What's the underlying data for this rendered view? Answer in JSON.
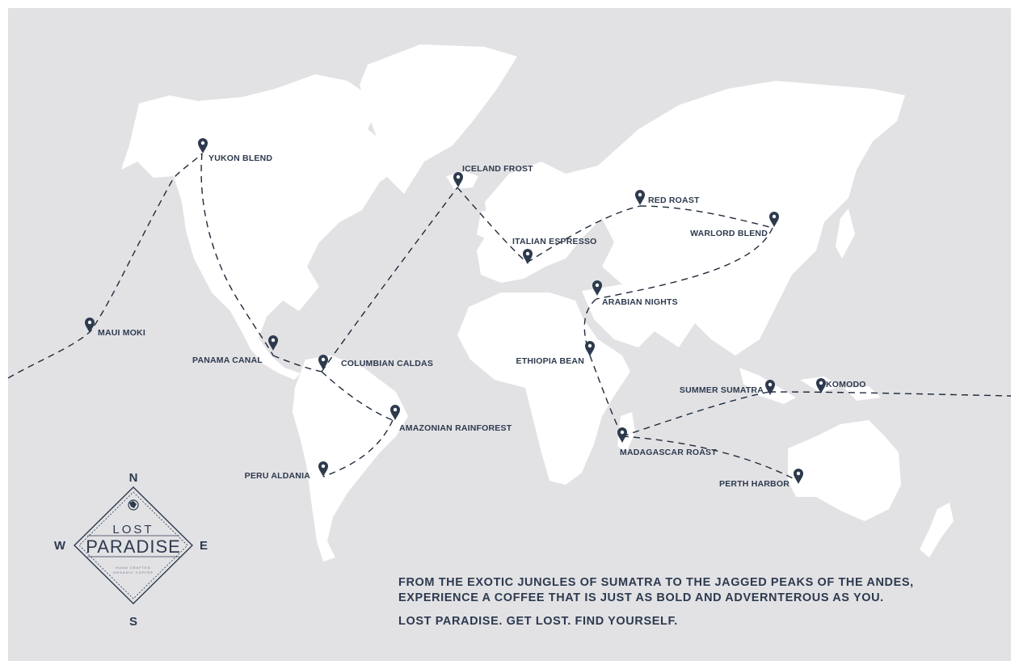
{
  "colors": {
    "ocean": "#e2e2e5",
    "land": "#ffffff",
    "ink": "#2d3a4e",
    "route": "#1f2a3a"
  },
  "locations": [
    {
      "key": "yukon",
      "label": "YUKON BLEND"
    },
    {
      "key": "maui",
      "label": "MAUI MOKI"
    },
    {
      "key": "panama",
      "label": "PANAMA CANAL"
    },
    {
      "key": "columbian",
      "label": "COLUMBIAN CALDAS"
    },
    {
      "key": "amazonian",
      "label": "AMAZONIAN RAINFOREST"
    },
    {
      "key": "peru",
      "label": "PERU ALDANIA"
    },
    {
      "key": "iceland",
      "label": "ICELAND FROST"
    },
    {
      "key": "italian",
      "label": "ITALIAN ESPRESSO"
    },
    {
      "key": "red",
      "label": "RED ROAST"
    },
    {
      "key": "warlord",
      "label": "WARLORD BLEND"
    },
    {
      "key": "arabian",
      "label": "ARABIAN NIGHTS"
    },
    {
      "key": "ethiopia",
      "label": "ETHIOPIA BEAN"
    },
    {
      "key": "madagascar",
      "label": "MADAGASCAR ROAST"
    },
    {
      "key": "sumatra",
      "label": "SUMMER SUMATRA"
    },
    {
      "key": "komodo",
      "label": "KOMODO"
    },
    {
      "key": "perth",
      "label": "PERTH HARBOR"
    }
  ],
  "compass": {
    "north": "N",
    "south": "S",
    "east": "E",
    "west": "W"
  },
  "brand": {
    "line1": "LOST",
    "line2": "PARADISE",
    "small1": "HAND CRAFTED",
    "small2": "ORGANIC COFFEE"
  },
  "tagline": {
    "line1": "FROM THE EXOTIC JUNGLES OF SUMATRA TO THE JAGGED PEAKS OF THE ANDES,",
    "line2": "EXPERIENCE A COFFEE THAT IS JUST AS BOLD AND ADVERNTEROUS AS YOU.",
    "motto": "LOST PARADISE. GET LOST. FIND YOURSELF."
  }
}
